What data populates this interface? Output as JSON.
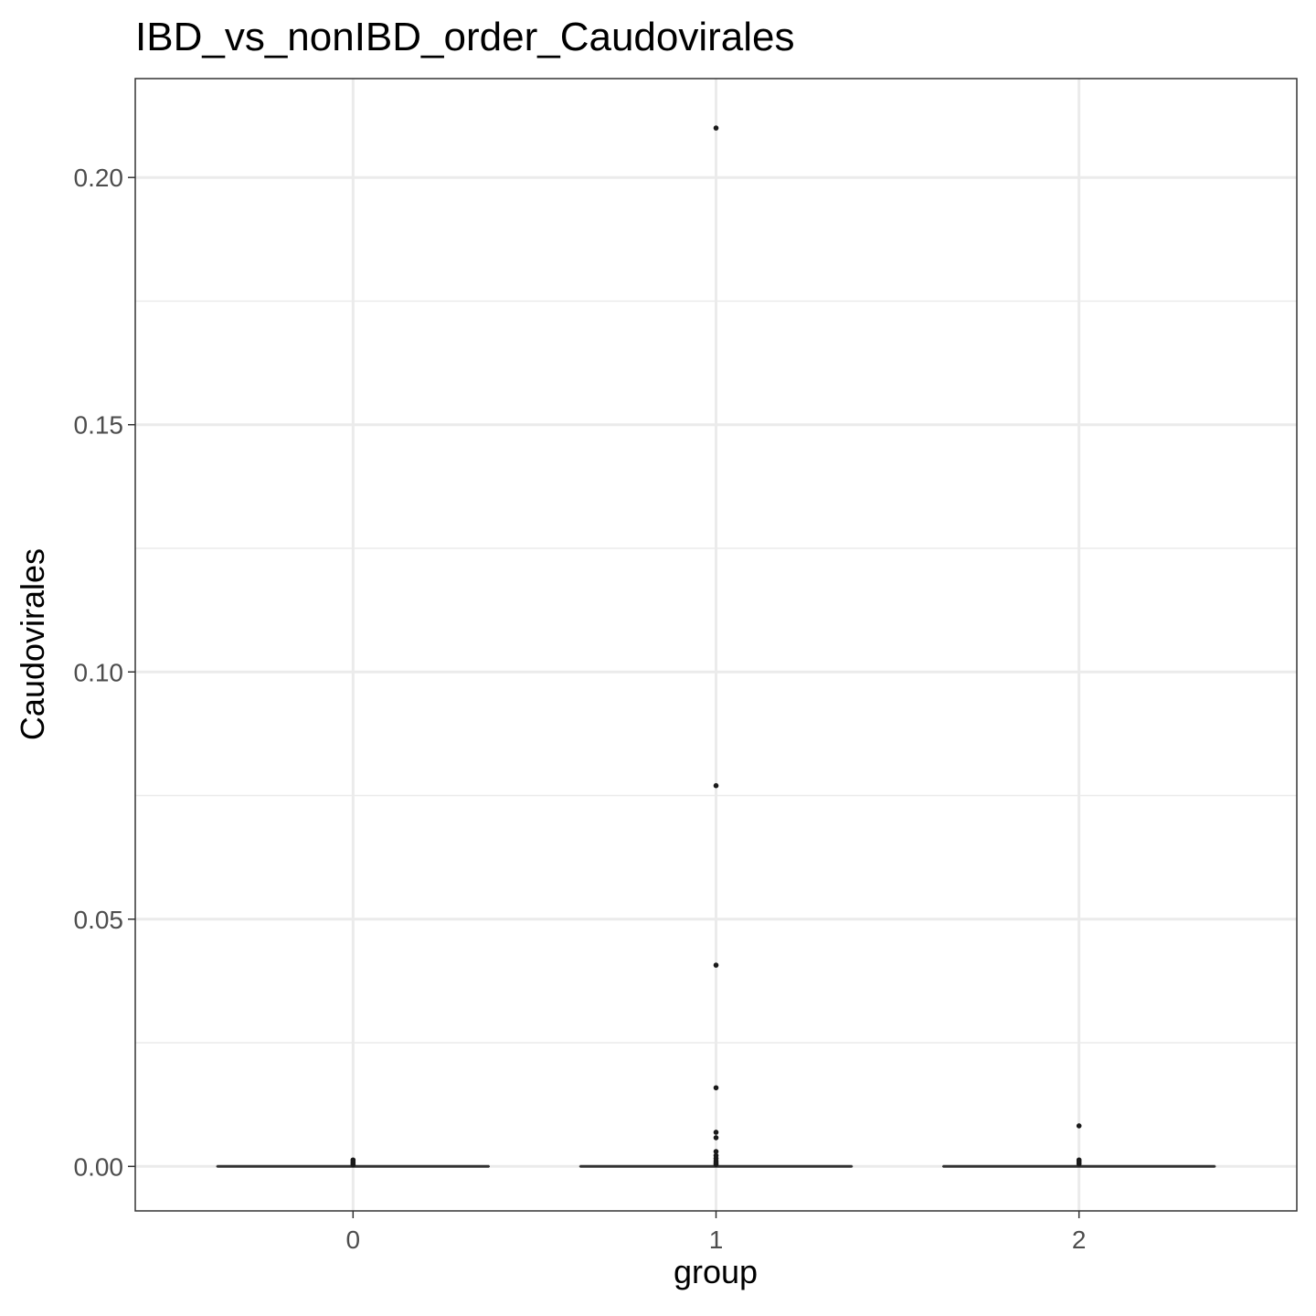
{
  "chart_data": {
    "type": "box",
    "title": "IBD_vs_nonIBD_order_Caudovirales",
    "xlabel": "group",
    "ylabel": "Caudovirales",
    "categories": [
      "0",
      "1",
      "2"
    ],
    "ylim": [
      -0.009,
      0.22
    ],
    "yticks": [
      0.0,
      0.05,
      0.1,
      0.15,
      0.2
    ],
    "ytick_labels": [
      "0.00",
      "0.05",
      "0.10",
      "0.15",
      "0.20"
    ],
    "grid": true,
    "boxes": [
      {
        "group": "0",
        "q1": 0,
        "median": 0,
        "q3": 0,
        "whisker_low": 0,
        "whisker_high": 0,
        "outliers": [
          0.0013,
          0.0009,
          0.0006,
          0.0003
        ]
      },
      {
        "group": "1",
        "q1": 0,
        "median": 0,
        "q3": 0,
        "whisker_low": 0,
        "whisker_high": 0,
        "outliers": [
          0.21,
          0.077,
          0.0407,
          0.0159,
          0.0069,
          0.0058,
          0.003,
          0.0022,
          0.0016,
          0.0011,
          0.0007,
          0.0004
        ]
      },
      {
        "group": "2",
        "q1": 0,
        "median": 0,
        "q3": 0,
        "whisker_low": 0,
        "whisker_high": 0,
        "outliers": [
          0.0082,
          0.0013,
          0.0009,
          0.0005
        ]
      }
    ],
    "colors": {
      "panel_border": "#333333",
      "grid": "#ebebeb",
      "points": "#1a1a1a",
      "box": "#333333"
    }
  }
}
